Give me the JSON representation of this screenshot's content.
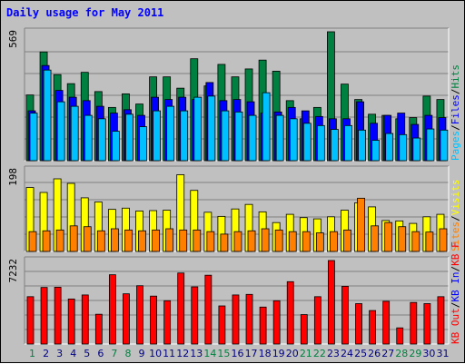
{
  "title": "Daily usage for May 2011",
  "colors": {
    "hits": "#008040",
    "files": "#0000ff",
    "pages": "#00c0ff",
    "visits": "#ffff00",
    "sites": "#ff8000",
    "kbytes": "#ff0000",
    "weekend_day": "#008040",
    "weekday_day": "#000080"
  },
  "chart_data": [
    {
      "type": "bar",
      "panel": "top",
      "ymax_label": "569",
      "ymax": 569,
      "categories": [
        "1",
        "2",
        "3",
        "4",
        "5",
        "6",
        "7",
        "8",
        "9",
        "10",
        "11",
        "12",
        "13",
        "14",
        "15",
        "16",
        "17",
        "18",
        "19",
        "20",
        "21",
        "22",
        "23",
        "24",
        "25",
        "26",
        "27",
        "28",
        "29",
        "30",
        "31"
      ],
      "legend": [
        {
          "text": "Pages",
          "color": "#00c0ff"
        },
        {
          "text": "Files",
          "color": "#0000ff"
        },
        {
          "text": "Hits",
          "color": "#008040"
        }
      ],
      "series": [
        {
          "name": "Hits",
          "values": [
            290,
            480,
            380,
            340,
            390,
            305,
            235,
            295,
            250,
            370,
            370,
            320,
            450,
            330,
            425,
            370,
            405,
            444,
            395,
            265,
            185,
            235,
            569,
            338,
            270,
            205,
            200,
            185,
            190,
            285,
            270
          ]
        },
        {
          "name": "Files",
          "values": [
            220,
            420,
            310,
            280,
            265,
            240,
            210,
            225,
            200,
            280,
            270,
            280,
            270,
            345,
            265,
            270,
            260,
            210,
            215,
            235,
            220,
            195,
            185,
            185,
            260,
            165,
            200,
            210,
            160,
            200,
            190
          ]
        },
        {
          "name": "Pages",
          "values": [
            210,
            400,
            260,
            240,
            200,
            185,
            130,
            205,
            150,
            220,
            240,
            220,
            280,
            285,
            220,
            215,
            200,
            300,
            200,
            185,
            165,
            155,
            138,
            155,
            135,
            90,
            120,
            115,
            100,
            140,
            135
          ]
        }
      ]
    },
    {
      "type": "bar",
      "panel": "middle",
      "ymax_label": "198",
      "ymax": 198,
      "categories": [
        "1",
        "2",
        "3",
        "4",
        "5",
        "6",
        "7",
        "8",
        "9",
        "10",
        "11",
        "12",
        "13",
        "14",
        "15",
        "16",
        "17",
        "18",
        "19",
        "20",
        "21",
        "22",
        "23",
        "24",
        "25",
        "26",
        "27",
        "28",
        "29",
        "30",
        "31"
      ],
      "legend": [
        {
          "text": "Sites",
          "color": "#ff8000"
        },
        {
          "text": "Visits",
          "color": "#ffff00"
        }
      ],
      "series": [
        {
          "name": "Visits",
          "values": [
            155,
            143,
            176,
            165,
            130,
            120,
            102,
            105,
            98,
            99,
            100,
            186,
            148,
            95,
            85,
            103,
            114,
            96,
            70,
            90,
            82,
            79,
            84,
            100,
            118,
            108,
            75,
            74,
            68,
            84,
            90
          ]
        },
        {
          "name": "Sites",
          "values": [
            48,
            50,
            52,
            62,
            60,
            50,
            55,
            52,
            50,
            52,
            55,
            52,
            52,
            48,
            42,
            48,
            50,
            55,
            52,
            48,
            48,
            45,
            48,
            52,
            129,
            62,
            70,
            60,
            48,
            47,
            55
          ]
        }
      ]
    },
    {
      "type": "bar",
      "panel": "bottom",
      "ymax_label": "7232",
      "ymax": 7232,
      "categories": [
        "1",
        "2",
        "3",
        "4",
        "5",
        "6",
        "7",
        "8",
        "9",
        "10",
        "11",
        "12",
        "13",
        "14",
        "15",
        "16",
        "17",
        "18",
        "19",
        "20",
        "21",
        "22",
        "23",
        "24",
        "25",
        "26",
        "27",
        "28",
        "29",
        "30",
        "31"
      ],
      "legend": [
        {
          "text": "KB Out",
          "color": "#ff0000"
        },
        {
          "text": "KB In",
          "color": "#0000ff"
        },
        {
          "text": "KB F",
          "color": "#ff0000"
        }
      ],
      "series": [
        {
          "name": "KBytes",
          "values": [
            4100,
            4900,
            4920,
            3900,
            4250,
            2580,
            6000,
            4350,
            5050,
            4150,
            3750,
            6150,
            4950,
            5960,
            3300,
            4250,
            4300,
            3200,
            3750,
            5400,
            2550,
            4100,
            7232,
            5000,
            3500,
            2900,
            3700,
            1400,
            3600,
            3500,
            4100
          ]
        }
      ]
    }
  ],
  "day_labels": [
    "1",
    "2",
    "3",
    "4",
    "5",
    "6",
    "7",
    "8",
    "9",
    "10",
    "11",
    "12",
    "13",
    "14",
    "15",
    "16",
    "17",
    "18",
    "19",
    "20",
    "21",
    "22",
    "23",
    "24",
    "25",
    "26",
    "27",
    "28",
    "29",
    "30",
    "31"
  ],
  "weekend_days": [
    1,
    7,
    8,
    14,
    15,
    21,
    22,
    28,
    29
  ]
}
